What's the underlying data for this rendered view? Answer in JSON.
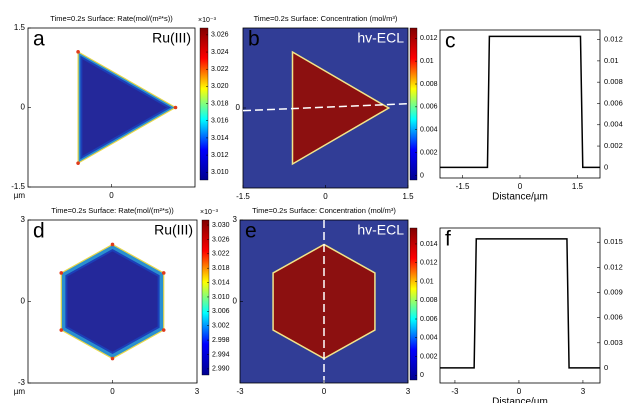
{
  "chart_data": [
    {
      "type": "heatmap",
      "panel": "a",
      "title": "Time=0.2s Surface: Rate(mol/(m²*s))",
      "label": "Ru(III)",
      "shape": "triangle",
      "quantity": "rate",
      "colormap": "jet",
      "xlim": [
        -1.5,
        1.5
      ],
      "ylim": [
        -1.5,
        1.5
      ],
      "xticks": [
        0
      ],
      "yticks": [
        1.5,
        0,
        -1.5
      ],
      "x_unit": "µm",
      "clim": [
        3.0091,
        3.0268
      ],
      "c_multiplier": "×10⁻³",
      "cticks": [
        {
          "value": 3.01,
          "label": "3.010"
        },
        {
          "value": 3.012,
          "label": "3.012"
        },
        {
          "value": 3.014,
          "label": "3.014"
        },
        {
          "value": 3.016,
          "label": "3.016"
        },
        {
          "value": 3.018,
          "label": "3.018"
        },
        {
          "value": 3.02,
          "label": "3.020"
        },
        {
          "value": 3.022,
          "label": "3.022"
        },
        {
          "value": 3.024,
          "label": "3.024"
        },
        {
          "value": 3.026,
          "label": "3.026"
        }
      ]
    },
    {
      "type": "heatmap",
      "panel": "b",
      "title": "Time=0.2s Surface: Concentration  (mol/m³)",
      "label": "hv-ECL",
      "shape": "triangle",
      "quantity": "concentration",
      "colormap": "jet",
      "xlim": [
        -1.5,
        1.5
      ],
      "ylim": [
        -1.5,
        1.5
      ],
      "xticks": [
        -1.5,
        0,
        1.5
      ],
      "yticks": [
        0
      ],
      "clim": [
        -0.0004,
        0.0129
      ],
      "cticks": [
        0,
        0.002,
        0.004,
        0.006,
        0.008,
        0.01,
        0.012
      ]
    },
    {
      "type": "line",
      "panel": "c",
      "xlabel": "Distance/µm",
      "color": "#000000",
      "x": [
        -2.09,
        -0.85,
        -0.8,
        1.58,
        1.64,
        2.09
      ],
      "values": [
        0,
        0,
        0.0123,
        0.0123,
        0,
        0
      ],
      "xlim": [
        -2.09,
        2.09
      ],
      "ylim": [
        -0.001,
        0.0129
      ],
      "xticks": [
        -1.5,
        0,
        1.5
      ],
      "yticks": [
        0,
        0.002,
        0.004,
        0.006,
        0.008,
        0.01,
        0.012
      ]
    },
    {
      "type": "heatmap",
      "panel": "d",
      "title": "Time=0.2s Surface: Rate(mol/(m²*s))",
      "label": "Ru(III)",
      "shape": "hexagon",
      "quantity": "rate",
      "colormap": "jet",
      "xlim": [
        -3,
        3
      ],
      "ylim": [
        -3,
        3
      ],
      "xticks": [
        0,
        3
      ],
      "yticks": [
        3,
        0,
        -3
      ],
      "x_unit": "µm",
      "clim": [
        2.9883,
        3.0314
      ],
      "c_multiplier": "×10⁻³",
      "cticks": [
        {
          "value": 2.99,
          "label": "2.990"
        },
        {
          "value": 2.994,
          "label": "2.994"
        },
        {
          "value": 2.998,
          "label": "2.998"
        },
        {
          "value": 3.002,
          "label": "3.002"
        },
        {
          "value": 3.006,
          "label": "3.006"
        },
        {
          "value": 3.01,
          "label": "3.010"
        },
        {
          "value": 3.014,
          "label": "3.014"
        },
        {
          "value": 3.018,
          "label": "3.018"
        },
        {
          "value": 3.022,
          "label": "3.022"
        },
        {
          "value": 3.026,
          "label": "3.026"
        },
        {
          "value": 3.03,
          "label": "3.030"
        }
      ]
    },
    {
      "type": "heatmap",
      "panel": "e",
      "title": "Time=0.2s Surface: Concentration  (mol/m³)",
      "label": "hv-ECL",
      "shape": "hexagon",
      "quantity": "concentration",
      "colormap": "jet",
      "xlim": [
        -3,
        3
      ],
      "ylim": [
        -3,
        3
      ],
      "xticks": [
        -3,
        0,
        3
      ],
      "yticks": [
        3,
        0
      ],
      "clim": [
        -0.0005,
        0.0157
      ],
      "cticks": [
        0,
        0.002,
        0.004,
        0.006,
        0.008,
        0.01,
        0.012,
        0.014
      ]
    },
    {
      "type": "line",
      "panel": "f",
      "xlabel": "Distance/µm",
      "color": "#000000",
      "x": [
        -3.7,
        -2.1,
        -2.0,
        2.25,
        2.35,
        3.8
      ],
      "values": [
        0,
        0,
        0.0154,
        0.0154,
        0,
        0
      ],
      "xlim": [
        -3.7,
        3.8
      ],
      "ylim": [
        -0.0018,
        0.0167
      ],
      "xticks": [
        -3,
        0,
        3
      ],
      "yticks": [
        0,
        0.003,
        0.006,
        0.009,
        0.012,
        0.015
      ]
    }
  ]
}
